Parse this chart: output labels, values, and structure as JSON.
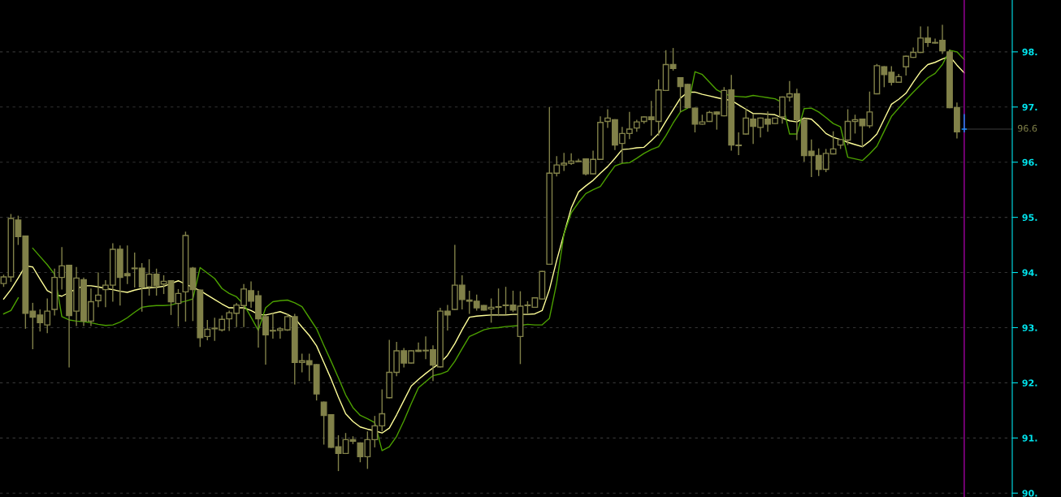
{
  "chart_data": {
    "type": "candlestick",
    "categories": [
      null,
      null,
      null,
      null,
      null,
      null,
      null,
      null,
      null,
      null,
      null,
      null,
      null,
      null,
      null,
      null,
      null,
      null,
      null,
      null,
      null,
      null,
      null,
      null,
      null,
      null,
      null,
      null,
      null,
      null,
      null,
      null,
      null,
      null,
      null,
      null,
      null,
      null,
      null,
      null,
      null,
      null,
      null,
      null,
      null,
      null,
      null,
      null,
      null,
      null,
      null,
      null,
      null,
      null,
      null,
      null,
      null,
      null,
      null,
      null,
      null,
      null,
      null,
      null,
      null,
      null,
      null,
      null,
      null,
      null,
      null,
      null,
      null,
      null,
      null,
      null,
      null,
      null,
      null,
      null,
      null,
      null,
      null,
      null,
      null,
      null,
      null,
      null,
      null,
      null,
      null,
      null,
      null,
      null,
      null,
      null,
      null,
      null,
      null,
      null,
      null,
      null,
      null,
      null,
      null,
      null,
      null,
      null,
      null,
      null,
      null,
      null,
      null,
      null,
      null,
      null,
      null,
      null,
      null,
      null,
      null,
      null,
      null,
      null,
      null,
      null,
      null,
      null,
      null,
      null,
      null,
      null,
      null
    ],
    "ohlc": [
      [
        93.8,
        93.95,
        93.75,
        93.92
      ],
      [
        93.92,
        95.05,
        93.84,
        94.98
      ],
      [
        94.95,
        95.02,
        94.51,
        94.65
      ],
      [
        94.66,
        94.66,
        92.99,
        93.26
      ],
      [
        93.3,
        93.44,
        92.62,
        93.19
      ],
      [
        93.23,
        93.32,
        92.94,
        93.09
      ],
      [
        93.05,
        93.52,
        92.91,
        93.3
      ],
      [
        93.33,
        94.06,
        93.23,
        93.91
      ],
      [
        93.91,
        94.45,
        93.7,
        94.12
      ],
      [
        94.13,
        94.13,
        92.29,
        93.22
      ],
      [
        93.3,
        94.09,
        93.04,
        93.9
      ],
      [
        93.87,
        93.9,
        93.04,
        93.12
      ],
      [
        93.12,
        93.7,
        93.04,
        93.47
      ],
      [
        93.49,
        93.99,
        93.38,
        93.59
      ],
      [
        93.69,
        93.85,
        93.38,
        93.77
      ],
      [
        93.77,
        94.52,
        93.48,
        94.42
      ],
      [
        94.42,
        94.48,
        93.41,
        93.91
      ],
      [
        93.98,
        94.48,
        93.8,
        93.94
      ],
      [
        94.07,
        94.35,
        93.74,
        94.08
      ],
      [
        94.08,
        94.16,
        93.3,
        93.74
      ],
      [
        93.74,
        94.23,
        93.59,
        93.97
      ],
      [
        93.97,
        94.06,
        93.59,
        93.76
      ],
      [
        93.79,
        93.94,
        93.62,
        93.84
      ],
      [
        93.85,
        93.85,
        93.24,
        93.47
      ],
      [
        93.44,
        93.69,
        93.03,
        93.62
      ],
      [
        93.65,
        94.73,
        93.12,
        94.67
      ],
      [
        94.08,
        94.09,
        93.13,
        93.69
      ],
      [
        93.68,
        93.68,
        92.66,
        92.82
      ],
      [
        92.84,
        93.13,
        92.78,
        92.97
      ],
      [
        92.98,
        93.17,
        92.77,
        92.99
      ],
      [
        92.96,
        93.21,
        92.94,
        93.15
      ],
      [
        93.16,
        93.3,
        92.95,
        93.27
      ],
      [
        93.26,
        93.44,
        93.02,
        93.41
      ],
      [
        93.4,
        93.78,
        93.02,
        93.7
      ],
      [
        93.67,
        93.83,
        93.37,
        93.48
      ],
      [
        93.58,
        93.66,
        92.65,
        93.16
      ],
      [
        93.2,
        93.2,
        92.34,
        92.87
      ],
      [
        92.94,
        93.25,
        92.81,
        92.95
      ],
      [
        92.95,
        93.0,
        92.81,
        92.98
      ],
      [
        92.96,
        93.24,
        92.95,
        93.2
      ],
      [
        93.2,
        93.24,
        91.98,
        92.37
      ],
      [
        92.37,
        92.52,
        92.2,
        92.4
      ],
      [
        92.4,
        92.52,
        92.04,
        92.33
      ],
      [
        92.33,
        92.33,
        91.69,
        91.8
      ],
      [
        91.65,
        91.65,
        90.89,
        91.41
      ],
      [
        91.42,
        91.42,
        90.83,
        90.83
      ],
      [
        90.84,
        91.04,
        90.41,
        90.72
      ],
      [
        90.72,
        91.08,
        90.72,
        90.97
      ],
      [
        90.97,
        91.02,
        90.9,
        90.94
      ],
      [
        90.91,
        90.91,
        90.57,
        90.66
      ],
      [
        90.66,
        91.11,
        90.45,
        90.97
      ],
      [
        90.97,
        91.39,
        90.84,
        91.22
      ],
      [
        91.22,
        91.87,
        91.13,
        91.44
      ],
      [
        91.73,
        92.77,
        91.73,
        92.19
      ],
      [
        92.19,
        92.73,
        92.13,
        92.58
      ],
      [
        92.58,
        92.62,
        92.29,
        92.36
      ],
      [
        92.36,
        92.58,
        92.36,
        92.58
      ],
      [
        92.57,
        92.72,
        92.57,
        92.59
      ],
      [
        92.58,
        92.83,
        92.44,
        92.59
      ],
      [
        92.6,
        92.67,
        92.04,
        92.32
      ],
      [
        92.29,
        93.35,
        92.29,
        93.3
      ],
      [
        93.3,
        93.4,
        92.96,
        93.23
      ],
      [
        93.33,
        94.49,
        93.33,
        93.77
      ],
      [
        93.77,
        93.94,
        93.34,
        93.51
      ],
      [
        93.5,
        93.66,
        93.26,
        93.48
      ],
      [
        93.48,
        93.59,
        93.32,
        93.36
      ],
      [
        93.4,
        93.4,
        93.32,
        93.32
      ],
      [
        93.34,
        93.52,
        93.1,
        93.37
      ],
      [
        93.37,
        93.7,
        93.22,
        93.38
      ],
      [
        93.4,
        93.73,
        93.25,
        93.41
      ],
      [
        93.41,
        93.66,
        93.29,
        93.32
      ],
      [
        92.84,
        93.65,
        92.35,
        93.39
      ],
      [
        93.4,
        93.47,
        93.27,
        93.41
      ],
      [
        93.37,
        93.54,
        93.37,
        93.54
      ],
      [
        93.52,
        94.02,
        93.52,
        94.02
      ],
      [
        94.15,
        96.99,
        94.15,
        95.8
      ],
      [
        95.8,
        96.1,
        95.75,
        95.95
      ],
      [
        95.95,
        96.16,
        95.85,
        95.98
      ],
      [
        95.98,
        96.15,
        95.96,
        96.02
      ],
      [
        96.01,
        96.05,
        96.01,
        96.02
      ],
      [
        96.06,
        96.06,
        95.77,
        95.79
      ],
      [
        95.79,
        96.2,
        95.79,
        96.05
      ],
      [
        96.05,
        96.82,
        96.05,
        96.72
      ],
      [
        96.74,
        96.95,
        96.63,
        96.8
      ],
      [
        96.77,
        96.77,
        96.23,
        96.31
      ],
      [
        96.34,
        96.63,
        95.99,
        96.52
      ],
      [
        96.52,
        96.9,
        96.43,
        96.6
      ],
      [
        96.62,
        96.76,
        96.56,
        96.73
      ],
      [
        96.74,
        96.82,
        96.71,
        96.82
      ],
      [
        96.82,
        97.1,
        96.49,
        96.77
      ],
      [
        96.74,
        97.49,
        96.49,
        97.31
      ],
      [
        97.3,
        98.02,
        97.3,
        97.77
      ],
      [
        97.77,
        98.06,
        97.67,
        97.7
      ],
      [
        97.53,
        97.53,
        96.92,
        97.37
      ],
      [
        97.41,
        97.41,
        96.99,
        96.99
      ],
      [
        96.98,
        96.98,
        96.55,
        96.69
      ],
      [
        96.69,
        96.85,
        96.69,
        96.73
      ],
      [
        96.74,
        96.92,
        96.74,
        96.9
      ],
      [
        96.91,
        96.91,
        96.6,
        96.87
      ],
      [
        96.84,
        97.35,
        96.84,
        97.3
      ],
      [
        97.31,
        97.57,
        96.22,
        96.31
      ],
      [
        96.3,
        96.53,
        96.14,
        96.31
      ],
      [
        96.51,
        96.96,
        96.51,
        96.8
      ],
      [
        96.78,
        96.86,
        96.34,
        96.65
      ],
      [
        96.63,
        96.8,
        96.46,
        96.8
      ],
      [
        96.78,
        96.91,
        96.56,
        96.69
      ],
      [
        96.7,
        96.8,
        96.7,
        96.8
      ],
      [
        96.82,
        97.18,
        96.71,
        97.18
      ],
      [
        97.18,
        97.46,
        97.11,
        97.24
      ],
      [
        97.24,
        97.32,
        96.41,
        96.77
      ],
      [
        96.77,
        96.77,
        96.02,
        96.12
      ],
      [
        96.2,
        96.4,
        95.74,
        96.12
      ],
      [
        96.12,
        96.24,
        95.76,
        95.87
      ],
      [
        95.87,
        96.23,
        95.83,
        96.16
      ],
      [
        96.15,
        96.55,
        96.15,
        96.24
      ],
      [
        96.31,
        96.41,
        96.25,
        96.41
      ],
      [
        96.4,
        96.95,
        96.32,
        96.74
      ],
      [
        96.74,
        96.85,
        96.53,
        96.77
      ],
      [
        96.78,
        96.78,
        96.28,
        96.66
      ],
      [
        96.66,
        97.27,
        96.63,
        96.91
      ],
      [
        97.24,
        97.77,
        97.24,
        97.75
      ],
      [
        97.73,
        97.73,
        97.37,
        97.59
      ],
      [
        97.63,
        97.73,
        97.4,
        97.45
      ],
      [
        97.45,
        97.59,
        97.45,
        97.55
      ],
      [
        97.73,
        97.92,
        97.58,
        97.92
      ],
      [
        97.9,
        98.07,
        97.9,
        97.99
      ],
      [
        97.99,
        98.45,
        97.99,
        98.25
      ],
      [
        98.25,
        98.45,
        98.1,
        98.17
      ],
      [
        98.17,
        98.23,
        98.16,
        98.16
      ],
      [
        98.21,
        98.48,
        97.97,
        98.02
      ],
      [
        98.0,
        98.03,
        96.99,
        96.99
      ],
      [
        96.99,
        97.07,
        96.44,
        96.55
      ],
      [
        96.6,
        96.86,
        96.55,
        96.6
      ]
    ],
    "colors": [
      "#818149",
      "#818149",
      "#818149",
      "#818149",
      "#818149",
      "#818149",
      "#818149",
      "#818149",
      "#818149",
      "#818149",
      "#818149",
      "#818149",
      "#818149",
      "#818149",
      "#818149",
      "#818149",
      "#818149",
      "#818149",
      "#818149",
      "#818149",
      "#818149",
      "#818149",
      "#818149",
      "#818149",
      "#818149",
      "#818149",
      "#818149",
      "#818149",
      "#818149",
      "#818149",
      "#818149",
      "#818149",
      "#818149",
      "#818149",
      "#818149",
      "#818149",
      "#818149",
      "#818149",
      "#818149",
      "#818149",
      "#818149",
      "#818149",
      "#818149",
      "#818149",
      "#818149",
      "#818149",
      "#818149",
      "#818149",
      "#818149",
      "#818149",
      "#818149",
      "#818149",
      "#818149",
      "#818149",
      "#818149",
      "#818149",
      "#818149",
      "#818149",
      "#818149",
      "#818149",
      "#818149",
      "#818149",
      "#818149",
      "#818149",
      "#818149",
      "#818149",
      "#818149",
      "#818149",
      "#818149",
      "#818149",
      "#818149",
      "#818149",
      "#818149",
      "#818149",
      "#818149",
      "#818149",
      "#818149",
      "#818149",
      "#818149",
      "#818149",
      "#818149",
      "#818149",
      "#818149",
      "#818149",
      "#818149",
      "#818149",
      "#818149",
      "#818149",
      "#818149",
      "#818149",
      "#818149",
      "#818149",
      "#818149",
      "#818149",
      "#818149",
      "#818149",
      "#818149",
      "#818149",
      "#818149",
      "#818149",
      "#818149",
      "#818149",
      "#818149",
      "#818149",
      "#818149",
      "#818149",
      "#818149",
      "#818149",
      "#818149",
      "#818149",
      "#818149",
      "#818149",
      "#818149",
      "#818149",
      "#818149",
      "#818149",
      "#818149",
      "#818149",
      "#818149",
      "#818149",
      "#818149",
      "#818149",
      "#818149",
      "#818149",
      "#818149",
      "#818149",
      "#818149",
      "#818149",
      "#818149",
      "#818149",
      "#818149",
      "#818149",
      "#1e90ff"
    ],
    "series": [
      {
        "type": "line",
        "color": "#ffff99",
        "values": [
          93.52,
          93.69,
          93.9,
          94.12,
          94.1,
          93.88,
          93.67,
          93.6,
          93.57,
          93.64,
          93.7,
          93.76,
          93.76,
          93.74,
          93.71,
          93.69,
          93.66,
          93.64,
          93.68,
          93.71,
          93.72,
          93.73,
          93.75,
          93.8,
          93.85,
          93.79,
          93.73,
          93.67,
          93.59,
          93.51,
          93.43,
          93.36,
          93.36,
          93.36,
          93.31,
          93.24,
          93.23,
          93.26,
          93.29,
          93.24,
          93.17,
          93.01,
          92.86,
          92.67,
          92.37,
          92.07,
          91.74,
          91.44,
          91.3,
          91.2,
          91.16,
          91.13,
          91.09,
          91.18,
          91.42,
          91.68,
          91.94,
          92.06,
          92.17,
          92.27,
          92.36,
          92.5,
          92.71,
          92.96,
          93.19,
          93.21,
          93.22,
          93.23,
          93.23,
          93.23,
          93.24,
          93.24,
          93.24,
          93.25,
          93.31,
          93.69,
          94.22,
          94.7,
          95.17,
          95.46,
          95.57,
          95.67,
          95.8,
          95.92,
          96.07,
          96.23,
          96.24,
          96.26,
          96.27,
          96.39,
          96.52,
          96.74,
          96.95,
          97.16,
          97.27,
          97.27,
          97.23,
          97.2,
          97.17,
          97.14,
          97.12,
          97.04,
          96.96,
          96.88,
          96.88,
          96.87,
          96.86,
          96.8,
          96.75,
          96.73,
          96.8,
          96.78,
          96.66,
          96.52,
          96.45,
          96.41,
          96.36,
          96.32,
          96.28,
          96.38,
          96.51,
          96.78,
          97.05,
          97.14,
          97.25,
          97.45,
          97.64,
          97.77,
          97.81,
          97.87,
          97.92,
          97.76,
          97.62
        ]
      },
      {
        "type": "line",
        "color": "#4ca000",
        "values": [
          93.25,
          93.31,
          93.54,
          null,
          94.44,
          94.29,
          94.14,
          93.97,
          93.2,
          93.14,
          93.12,
          93.11,
          93.09,
          93.06,
          93.04,
          93.05,
          93.1,
          93.18,
          93.28,
          93.37,
          93.39,
          93.4,
          93.4,
          93.41,
          93.45,
          93.48,
          93.52,
          94.09,
          93.99,
          93.89,
          93.71,
          93.62,
          93.56,
          93.42,
          93.19,
          92.95,
          93.36,
          93.47,
          93.49,
          93.5,
          93.45,
          93.38,
          93.18,
          92.98,
          92.68,
          92.39,
          92.09,
          91.78,
          91.55,
          91.41,
          91.35,
          91.28,
          90.77,
          90.84,
          91.03,
          91.31,
          91.62,
          91.91,
          92.02,
          92.13,
          92.16,
          92.21,
          92.39,
          92.62,
          92.84,
          92.9,
          92.96,
          92.99,
          93.0,
          93.02,
          93.03,
          93.04,
          93.06,
          93.05,
          93.05,
          93.17,
          93.81,
          94.7,
          95.08,
          95.27,
          95.43,
          95.5,
          95.56,
          95.75,
          95.93,
          95.98,
          95.99,
          96.07,
          96.16,
          96.23,
          96.28,
          96.48,
          96.71,
          96.91,
          96.98,
          97.64,
          97.59,
          97.45,
          97.31,
          97.24,
          97.2,
          97.19,
          97.18,
          97.21,
          97.19,
          97.17,
          97.15,
          97.08,
          96.51,
          96.51,
          96.97,
          96.98,
          96.91,
          96.81,
          96.7,
          96.64,
          96.09,
          96.06,
          96.03,
          96.15,
          96.29,
          96.56,
          96.83,
          96.98,
          97.13,
          97.27,
          97.4,
          97.53,
          97.61,
          97.77,
          98.03,
          98.0,
          97.86
        ]
      }
    ],
    "ylim": [
      89.93,
      98.94
    ],
    "yticks": [
      {
        "value": 90,
        "label": "90."
      },
      {
        "value": 91,
        "label": "91."
      },
      {
        "value": 92,
        "label": "92."
      },
      {
        "value": 93,
        "label": "93."
      },
      {
        "value": 94,
        "label": "94."
      },
      {
        "value": 95,
        "label": "95."
      },
      {
        "value": 96,
        "label": "96."
      },
      {
        "value": 97,
        "label": "97."
      },
      {
        "value": 98,
        "label": "98."
      }
    ],
    "ref_lines": [
      {
        "axis": "y",
        "value": 96.6,
        "label": "96.6",
        "color": "#3c3c3c"
      }
    ],
    "grid": "y",
    "tick_labels": "y",
    "legend": false
  }
}
